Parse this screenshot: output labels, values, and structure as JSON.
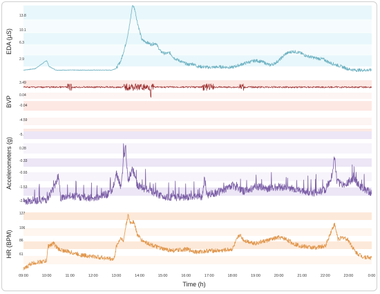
{
  "chart_data": {
    "type": "line",
    "x_unit_label": "Time (h)",
    "x_ticks": [
      "09:00",
      "10:00",
      "11:00",
      "12:00",
      "13:00",
      "14:00",
      "15:00",
      "16:00",
      "17:00",
      "18:00",
      "19:00",
      "20:00",
      "21:00",
      "22:00",
      "23:00",
      "0:00"
    ],
    "x_range_hours": [
      9,
      24
    ],
    "panels": [
      {
        "id": "eda",
        "ylabel": "EDA (µS)",
        "yticks": [
          "13.8",
          "10.1",
          "6.3",
          "2.9"
        ],
        "ylim": [
          0,
          14.5
        ],
        "color": "#6fb2c2",
        "bands": [
          "#e8f7fb",
          "#f6fcfd"
        ],
        "points": [
          [
            9.0,
            0.4
          ],
          [
            9.5,
            0.7
          ],
          [
            10.0,
            2.5
          ],
          [
            10.1,
            1.2
          ],
          [
            10.4,
            0.4
          ],
          [
            12.8,
            0.4
          ],
          [
            13.0,
            0.8
          ],
          [
            13.2,
            2.5
          ],
          [
            13.4,
            6.0
          ],
          [
            13.55,
            9.5
          ],
          [
            13.7,
            14.8
          ],
          [
            13.8,
            13.5
          ],
          [
            13.9,
            11.0
          ],
          [
            14.0,
            9.0
          ],
          [
            14.1,
            7.0
          ],
          [
            14.3,
            6.5
          ],
          [
            14.5,
            6.0
          ],
          [
            14.7,
            6.3
          ],
          [
            14.9,
            4.5
          ],
          [
            15.1,
            4.0
          ],
          [
            15.3,
            4.2
          ],
          [
            15.5,
            3.0
          ],
          [
            15.7,
            2.5
          ],
          [
            15.9,
            2.0
          ],
          [
            16.1,
            1.6
          ],
          [
            16.3,
            1.8
          ],
          [
            16.5,
            1.2
          ],
          [
            17.0,
            1.0
          ],
          [
            17.5,
            1.1
          ],
          [
            18.0,
            1.0
          ],
          [
            18.3,
            1.5
          ],
          [
            18.6,
            2.0
          ],
          [
            19.0,
            2.5
          ],
          [
            19.3,
            2.2
          ],
          [
            19.6,
            1.5
          ],
          [
            19.8,
            1.8
          ],
          [
            20.0,
            2.5
          ],
          [
            20.3,
            4.0
          ],
          [
            20.6,
            4.5
          ],
          [
            20.9,
            4.2
          ],
          [
            21.2,
            3.5
          ],
          [
            21.6,
            3.0
          ],
          [
            21.9,
            2.8
          ],
          [
            22.2,
            2.0
          ],
          [
            22.5,
            1.5
          ],
          [
            22.8,
            1.0
          ],
          [
            23.0,
            0.6
          ],
          [
            23.3,
            0.4
          ],
          [
            24.0,
            0.4
          ]
        ]
      },
      {
        "id": "bvp",
        "ylabel": "BVP",
        "yticks": [
          "3.49",
          "0.04",
          "-0.04",
          "-4.59",
          "-5.13",
          "-5.68"
        ],
        "ylim": [
          -6.2,
          4.0
        ],
        "color": "#9b2a2a",
        "bands": [
          "#fde8e4",
          "#fdf5f3"
        ]
      },
      {
        "id": "acc",
        "ylabel": "Accelerometers (g)",
        "yticks": [
          "0.28",
          "-0.33",
          "-0.93",
          "-1.53",
          "-2.14"
        ],
        "ylim": [
          -2.2,
          0.6
        ],
        "color": "#7b5ea6",
        "bands": [
          "#ece6f6",
          "#f7f4fb"
        ],
        "points": [
          [
            9.0,
            -2.0
          ],
          [
            10.0,
            -1.95
          ],
          [
            10.3,
            -1.6
          ],
          [
            10.5,
            -1.2
          ],
          [
            10.6,
            -1.9
          ],
          [
            11.0,
            -1.85
          ],
          [
            12.0,
            -1.9
          ],
          [
            12.8,
            -1.75
          ],
          [
            13.0,
            -1.1
          ],
          [
            13.2,
            -1.6
          ],
          [
            13.3,
            -0.8
          ],
          [
            13.4,
            -0.3
          ],
          [
            13.5,
            -1.4
          ],
          [
            13.7,
            -1.0
          ],
          [
            13.9,
            -1.5
          ],
          [
            14.2,
            -1.6
          ],
          [
            15.0,
            -1.85
          ],
          [
            16.0,
            -1.9
          ],
          [
            16.7,
            -1.85
          ],
          [
            16.8,
            -1.3
          ],
          [
            16.9,
            -1.8
          ],
          [
            17.5,
            -1.7
          ],
          [
            18.0,
            -1.5
          ],
          [
            18.5,
            -1.7
          ],
          [
            19.0,
            -1.55
          ],
          [
            19.5,
            -1.6
          ],
          [
            20.0,
            -1.55
          ],
          [
            20.5,
            -1.6
          ],
          [
            21.0,
            -1.7
          ],
          [
            21.5,
            -1.75
          ],
          [
            22.0,
            -1.65
          ],
          [
            22.3,
            -1.2
          ],
          [
            22.4,
            -0.6
          ],
          [
            22.5,
            -1.4
          ],
          [
            22.8,
            -1.5
          ],
          [
            23.2,
            -1.3
          ],
          [
            23.6,
            -1.6
          ],
          [
            24.0,
            -1.75
          ]
        ]
      },
      {
        "id": "hr",
        "ylabel": "HR (BPM)",
        "yticks": [
          "127",
          "106",
          "86",
          "61"
        ],
        "ylim": [
          50,
          135
        ],
        "color": "#e0954a",
        "bands": [
          "#fde9d9",
          "#fef6ef"
        ],
        "points": [
          [
            9.0,
            52
          ],
          [
            9.3,
            60
          ],
          [
            9.6,
            62
          ],
          [
            10.0,
            64
          ],
          [
            10.05,
            84
          ],
          [
            10.3,
            88
          ],
          [
            10.5,
            80
          ],
          [
            11.0,
            76
          ],
          [
            11.5,
            72
          ],
          [
            12.0,
            70
          ],
          [
            12.5,
            68
          ],
          [
            12.9,
            66
          ],
          [
            13.0,
            84
          ],
          [
            13.2,
            96
          ],
          [
            13.3,
            90
          ],
          [
            13.4,
            110
          ],
          [
            13.5,
            126
          ],
          [
            13.6,
            116
          ],
          [
            13.75,
            118
          ],
          [
            13.9,
            100
          ],
          [
            14.1,
            92
          ],
          [
            14.5,
            86
          ],
          [
            15.0,
            80
          ],
          [
            15.5,
            78
          ],
          [
            16.0,
            80
          ],
          [
            16.5,
            76
          ],
          [
            17.0,
            78
          ],
          [
            17.5,
            78
          ],
          [
            18.0,
            80
          ],
          [
            18.3,
            100
          ],
          [
            18.5,
            92
          ],
          [
            19.0,
            88
          ],
          [
            19.5,
            92
          ],
          [
            20.0,
            96
          ],
          [
            20.3,
            94
          ],
          [
            20.6,
            88
          ],
          [
            21.0,
            84
          ],
          [
            21.5,
            82
          ],
          [
            22.0,
            84
          ],
          [
            22.3,
            108
          ],
          [
            22.4,
            114
          ],
          [
            22.55,
            94
          ],
          [
            22.8,
            96
          ],
          [
            23.0,
            92
          ],
          [
            23.3,
            76
          ],
          [
            23.6,
            70
          ],
          [
            24.0,
            68
          ]
        ]
      }
    ]
  }
}
